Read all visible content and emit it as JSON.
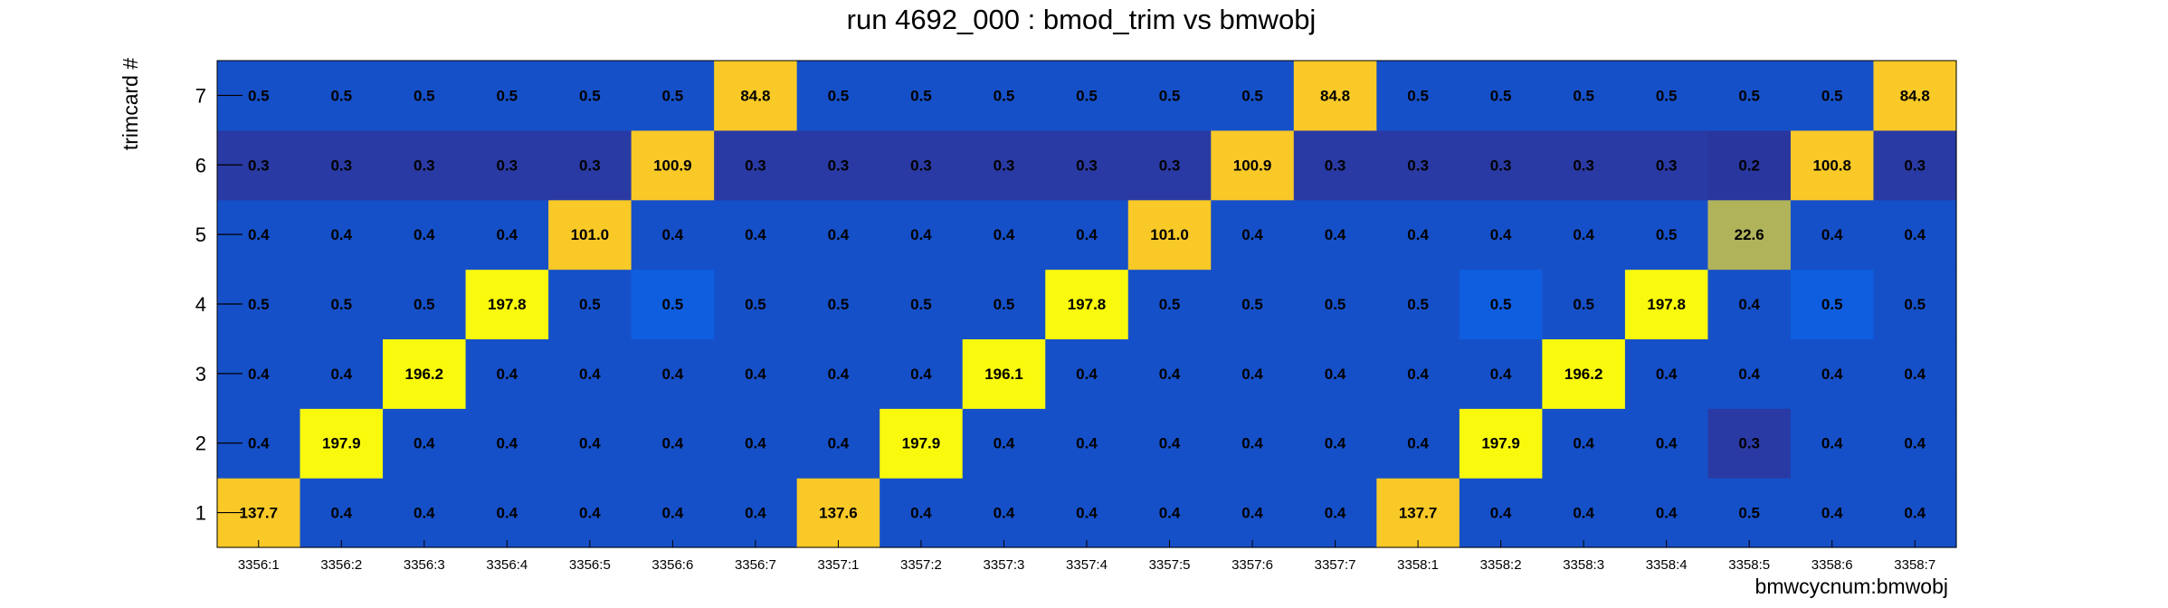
{
  "chart_data": {
    "type": "heatmap",
    "title": "run 4692_000 : bmod_trim vs bmwobj",
    "xlabel": "bmwcycnum:bmwobj",
    "ylabel": "trimcard #",
    "x_categories": [
      "3356:1",
      "3356:2",
      "3356:3",
      "3356:4",
      "3356:5",
      "3356:6",
      "3356:7",
      "3357:1",
      "3357:2",
      "3357:3",
      "3357:4",
      "3357:5",
      "3357:6",
      "3357:7",
      "3358:1",
      "3358:2",
      "3358:3",
      "3358:4",
      "3358:5",
      "3358:6",
      "3358:7"
    ],
    "y_categories": [
      "1",
      "2",
      "3",
      "4",
      "5",
      "6",
      "7"
    ],
    "values": [
      [
        "137.7",
        "0.4",
        "0.4",
        "0.4",
        "0.4",
        "0.4",
        "0.4",
        "137.6",
        "0.4",
        "0.4",
        "0.4",
        "0.4",
        "0.4",
        "0.4",
        "137.7",
        "0.4",
        "0.4",
        "0.4",
        "0.5",
        "0.4",
        "0.4"
      ],
      [
        "0.4",
        "197.9",
        "0.4",
        "0.4",
        "0.4",
        "0.4",
        "0.4",
        "0.4",
        "197.9",
        "0.4",
        "0.4",
        "0.4",
        "0.4",
        "0.4",
        "0.4",
        "197.9",
        "0.4",
        "0.4",
        "0.3",
        "0.4",
        "0.4"
      ],
      [
        "0.4",
        "0.4",
        "196.2",
        "0.4",
        "0.4",
        "0.4",
        "0.4",
        "0.4",
        "0.4",
        "196.1",
        "0.4",
        "0.4",
        "0.4",
        "0.4",
        "0.4",
        "0.4",
        "196.2",
        "0.4",
        "0.4",
        "0.4",
        "0.4"
      ],
      [
        "0.5",
        "0.5",
        "0.5",
        "197.8",
        "0.5",
        "0.5",
        "0.5",
        "0.5",
        "0.5",
        "0.5",
        "197.8",
        "0.5",
        "0.5",
        "0.5",
        "0.5",
        "0.5",
        "0.5",
        "197.8",
        "0.4",
        "0.5",
        "0.5"
      ],
      [
        "0.4",
        "0.4",
        "0.4",
        "0.4",
        "101.0",
        "0.4",
        "0.4",
        "0.4",
        "0.4",
        "0.4",
        "0.4",
        "101.0",
        "0.4",
        "0.4",
        "0.4",
        "0.4",
        "0.4",
        "0.5",
        "22.6",
        "0.4",
        "0.4"
      ],
      [
        "0.3",
        "0.3",
        "0.3",
        "0.3",
        "0.3",
        "100.9",
        "0.3",
        "0.3",
        "0.3",
        "0.3",
        "0.3",
        "0.3",
        "100.9",
        "0.3",
        "0.3",
        "0.3",
        "0.3",
        "0.3",
        "0.2",
        "100.8",
        "0.3"
      ],
      [
        "0.5",
        "0.5",
        "0.5",
        "0.5",
        "0.5",
        "0.5",
        "84.8",
        "0.5",
        "0.5",
        "0.5",
        "0.5",
        "0.5",
        "0.5",
        "84.8",
        "0.5",
        "0.5",
        "0.5",
        "0.5",
        "0.5",
        "0.5",
        "84.8"
      ]
    ],
    "colors": {
      "high": "#f9f90e",
      "upper": "#f9c928",
      "mid": "#b0b35a",
      "low_bright": "#0f5ee0",
      "low": "#1650c8",
      "lowest": "#2a3aa4",
      "minimum": "#28369e"
    },
    "colormap_range": [
      0.2,
      197.9
    ]
  }
}
